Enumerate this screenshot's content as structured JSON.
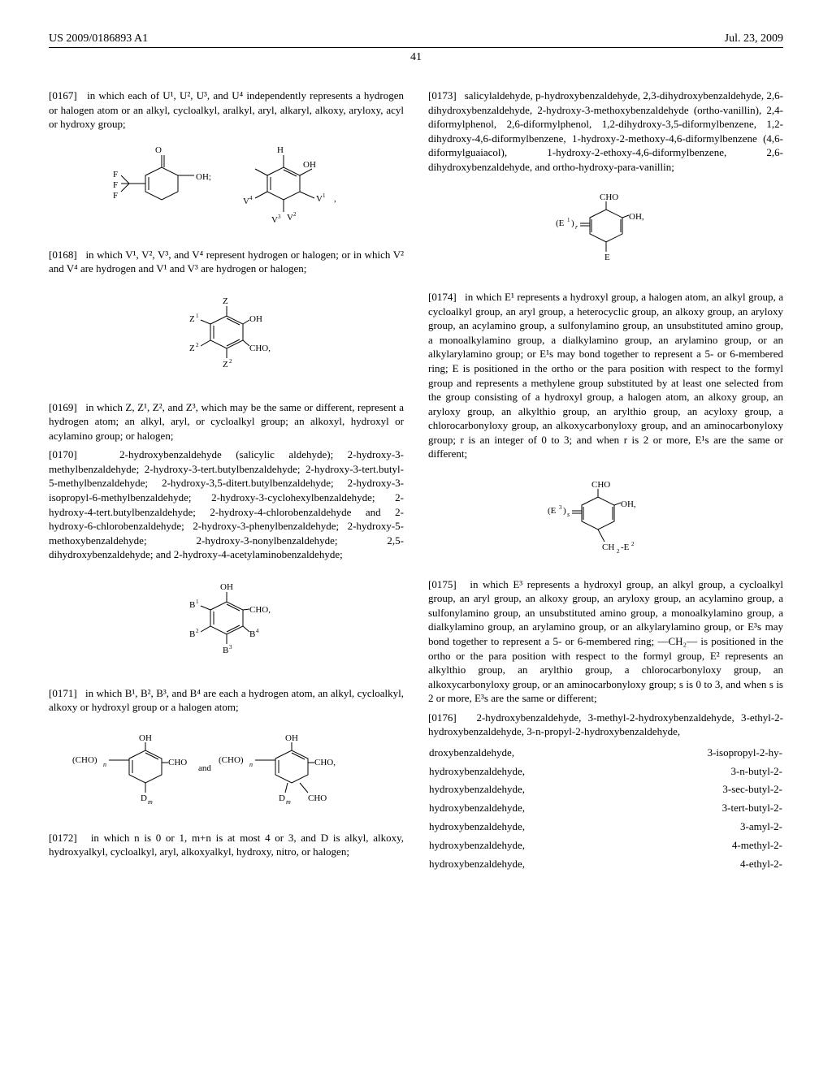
{
  "header": {
    "patent_no": "US 2009/0186893 A1",
    "date": "Jul. 23, 2009"
  },
  "page_number": "41",
  "left_col": {
    "p0167_num": "[0167]",
    "p0167_text": "  in which each of U¹, U², U³, and U⁴ independently represents a hydrogen or halogen atom or an alkyl, cycloalkyl, aralkyl, aryl, alkaryl, alkoxy, aryloxy, acyl or hydroxy group;",
    "p0168_num": "[0168]",
    "p0168_text": "  in which V¹, V², V³, and V⁴ represent hydrogen or halogen; or in which V² and V⁴ are hydrogen and V¹ and V³ are hydrogen or halogen;",
    "p0169_num": "[0169]",
    "p0169_text": "  in which Z, Z¹, Z², and Z³, which may be the same or different, represent a hydrogen atom; an alkyl, aryl, or cycloalkyl group; an alkoxyl, hydroxyl or acylamino group; or halogen;",
    "p0170_num": "[0170]",
    "p0170_text": "  2-hydroxybenzaldehyde (salicylic aldehyde); 2-hydroxy-3-methylbenzaldehyde; 2-hydroxy-3-tert.butylbenzaldehyde; 2-hydroxy-3-tert.butyl-5-methylbenzaldehyde; 2-hydroxy-3,5-ditert.butylbenzaldehyde; 2-hydroxy-3-isopropyl-6-methylbenzaldehyde; 2-hydroxy-3-cyclohexylbenzaldehyde; 2-hydroxy-4-tert.butylbenzaldehyde; 2-hydroxy-4-chlorobenzaldehyde and 2-hydroxy-6-chlorobenzaldehyde; 2-hydroxy-3-phenylbenzaldehyde; 2-hydroxy-5-methoxybenzaldehyde; 2-hydroxy-3-nonylbenzaldehyde; 2,5-dihydroxybenzaldehyde; and 2-hydroxy-4-acetylaminobenzaldehyde;",
    "p0171_num": "[0171]",
    "p0171_text": "  in which B¹, B², B³, and B⁴ are each a hydrogen atom, an alkyl, cycloalkyl, alkoxy or hydroxyl group or a halogen atom;",
    "p0172_num": "[0172]",
    "p0172_text": "  in which n is 0 or 1, m+n is at most 4 or 3, and D is alkyl, alkoxy, hydroxyalkyl, cycloalkyl, aryl, alkoxyalkyl, hydroxy, nitro, or halogen;"
  },
  "right_col": {
    "p0173_num": "[0173]",
    "p0173_text": "  salicylaldehyde, p-hydroxybenzaldehyde, 2,3-dihydroxybenzaldehyde, 2,6-dihydroxybenzaldehyde, 2-hydroxy-3-methoxybenzaldehyde (ortho-vanillin), 2,4-diformylphenol, 2,6-diformylphenol, 1,2-dihydroxy-3,5-diformylbenzene, 1,2-dihydroxy-4,6-diformylbenzene, 1-hydroxy-2-methoxy-4,6-diformylbenzene (4,6-diformylguaiacol), 1-hydroxy-2-ethoxy-4,6-diformylbenzene, 2,6-dihydroxybenzaldehyde, and ortho-hydroxy-para-vanillin;",
    "p0174_num": "[0174]",
    "p0174_text": "  in which E¹ represents a hydroxyl group, a halogen atom, an alkyl group, a cycloalkyl group, an aryl group, a heterocyclic group, an alkoxy group, an aryloxy group, an acylamino group, a sulfonylamino group, an unsubstituted amino group, a monoalkylamino group, a dialkylamino group, an arylamino group, or an alkylarylamino group; or E¹s may bond together to represent a 5- or 6-membered ring; E is positioned in the ortho or the para position with respect to the formyl group and represents a methylene group substituted by at least one selected from the group consisting of a hydroxyl group, a halogen atom, an alkoxy group, an aryloxy group, an alkylthio group, an arylthio group, an acyloxy group, a chlorocarbonyloxy group, an alkoxycarbonyloxy group, and an aminocarbonyloxy group; r is an integer of 0 to 3; and when r is 2 or more, E¹s are the same or different;",
    "p0175_num": "[0175]",
    "p0175_text": "  in which E³ represents a hydroxyl group, an alkyl group, a cycloalkyl group, an aryl group, an alkoxy group, an aryloxy group, an acylamino group, a sulfonylamino group, an unsubstituted amino group, a monoalkylamino group, a dialkylamino group, an arylamino group, or an alkylarylamino group, or E³s may bond together to represent a 5- or 6-membered ring; —CH₂— is positioned in the ortho or the para position with respect to the formyl group, E² represents an alkylthio group, an arylthio group, a chlorocarbonyloxy group, an alkoxycarbonyloxy group, or an aminocarbonyloxy group; s is 0 to 3, and when s is 2 or more, E³s are the same or different;",
    "p0176_num": "[0176]",
    "p0176_text": "  2-hydroxybenzaldehyde, 3-methyl-2-hydroxybenzaldehyde, 3-ethyl-2-hydroxybenzaldehyde, 3-n-propyl-2-hydroxybenzaldehyde,",
    "compound_list": [
      [
        "droxybenzaldehyde,",
        "3-isopropyl-2-hy-"
      ],
      [
        "hydroxybenzaldehyde,",
        "3-n-butyl-2-"
      ],
      [
        "hydroxybenzaldehyde,",
        "3-sec-butyl-2-"
      ],
      [
        "hydroxybenzaldehyde,",
        "3-tert-butyl-2-"
      ],
      [
        "hydroxybenzaldehyde,",
        "3-amyl-2-"
      ],
      [
        "hydroxybenzaldehyde,",
        "4-methyl-2-"
      ],
      [
        "hydroxybenzaldehyde,",
        "4-ethyl-2-"
      ]
    ]
  },
  "colors": {
    "text": "#000000",
    "background": "#ffffff",
    "rule": "#000000"
  }
}
